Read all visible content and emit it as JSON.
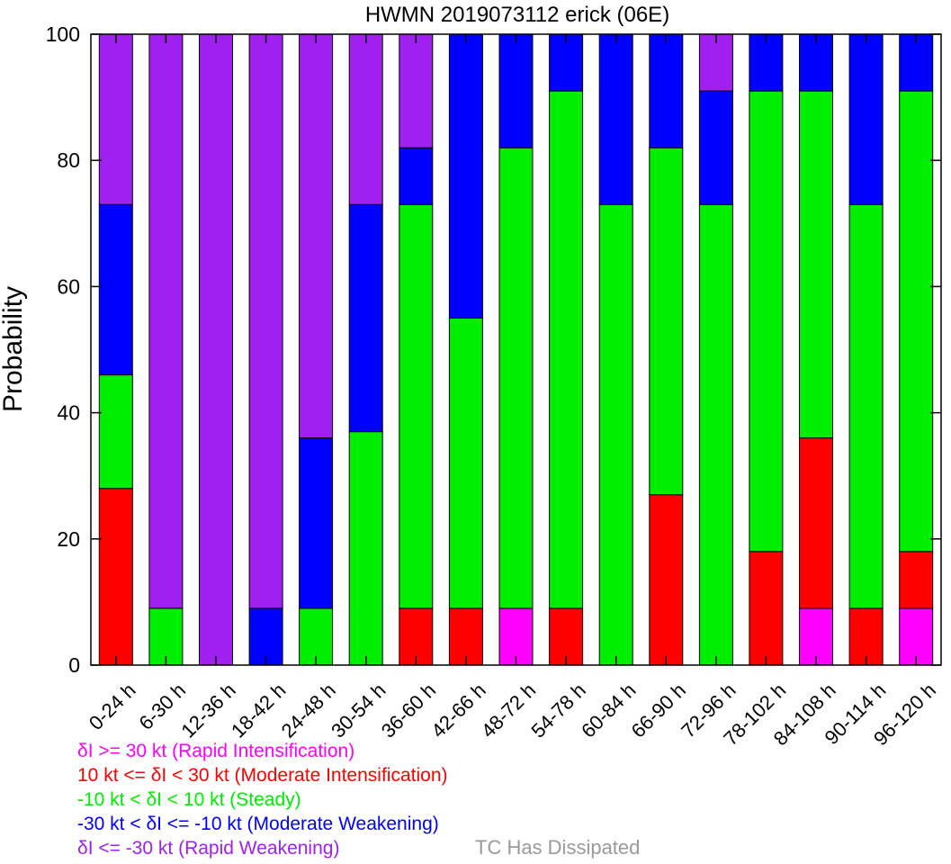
{
  "chart_data": {
    "type": "bar",
    "stacked": true,
    "title": "HWMN 2019073112 erick (06E)",
    "ylabel": "Probability",
    "xlabel": "",
    "ylim": [
      0,
      100
    ],
    "yticks": [
      0,
      20,
      40,
      60,
      80,
      100
    ],
    "categories": [
      "0-24 h",
      "6-30 h",
      "12-36 h",
      "18-42 h",
      "24-48 h",
      "30-54 h",
      "36-60 h",
      "42-66 h",
      "48-72 h",
      "54-78 h",
      "60-84 h",
      "66-90 h",
      "72-96 h",
      "78-102 h",
      "84-108 h",
      "90-114 h",
      "96-120 h"
    ],
    "series": [
      {
        "name": "δI >= 30 kt (Rapid Intensification)",
        "color": "#ff00ff",
        "values": [
          0,
          0,
          0,
          0,
          0,
          0,
          0,
          0,
          9,
          0,
          0,
          0,
          0,
          0,
          9,
          0,
          9
        ]
      },
      {
        "name": "10 kt <= δI < 30 kt (Moderate Intensification)",
        "color": "#ff0000",
        "values": [
          28,
          0,
          0,
          0,
          0,
          0,
          9,
          9,
          0,
          9,
          0,
          27,
          0,
          18,
          27,
          9,
          9
        ]
      },
      {
        "name": "-10 kt < δI < 10 kt (Steady)",
        "color": "#00ee00",
        "values": [
          18,
          9,
          0,
          0,
          9,
          37,
          64,
          46,
          73,
          82,
          73,
          55,
          73,
          73,
          55,
          64,
          73
        ]
      },
      {
        "name": "-30 kt < δI <= -10 kt (Moderate Weakening)",
        "color": "#0000ff",
        "values": [
          27,
          0,
          0,
          9,
          27,
          36,
          9,
          45,
          18,
          9,
          27,
          18,
          18,
          9,
          9,
          27,
          9
        ]
      },
      {
        "name": "δI <= -30 kt (Rapid Weakening)",
        "color": "#a020f0",
        "values": [
          27,
          91,
          100,
          91,
          64,
          27,
          18,
          0,
          0,
          0,
          0,
          0,
          9,
          0,
          0,
          0,
          0
        ]
      }
    ],
    "legend_position": "bottom-left",
    "grid": false
  },
  "legend_extra": {
    "label": "TC Has Dissipated",
    "color": "#999999"
  }
}
